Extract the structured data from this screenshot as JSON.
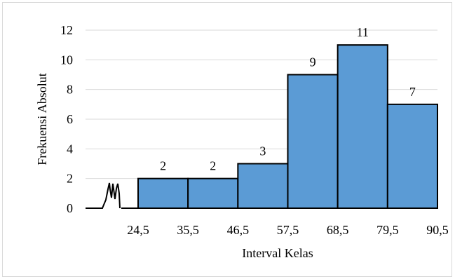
{
  "colors": {
    "bar_fill": "#5B9BD5",
    "bar_stroke": "#000000",
    "grid": "#d9d9d9",
    "axis_break": "#000000"
  },
  "chart_data": {
    "type": "bar",
    "xlabel": "Interval Kelas",
    "ylabel": "Frekuensi Absolut",
    "x_boundaries": [
      "24,5",
      "35,5",
      "46,5",
      "57,5",
      "68,5",
      "79,5",
      "90,5"
    ],
    "bins": [
      {
        "from": 24.5,
        "to": 35.5,
        "value": 2,
        "label": "2"
      },
      {
        "from": 35.5,
        "to": 46.5,
        "value": 2,
        "label": "2"
      },
      {
        "from": 46.5,
        "to": 57.5,
        "value": 3,
        "label": "3"
      },
      {
        "from": 57.5,
        "to": 68.5,
        "value": 9,
        "label": "9"
      },
      {
        "from": 68.5,
        "to": 79.5,
        "value": 11,
        "label": "11"
      },
      {
        "from": 79.5,
        "to": 90.5,
        "value": 7,
        "label": "7"
      }
    ],
    "y_ticks": [
      "0",
      "2",
      "4",
      "6",
      "8",
      "10",
      "12"
    ],
    "ylim": [
      0,
      12
    ],
    "grid": true,
    "axis_break": true
  }
}
